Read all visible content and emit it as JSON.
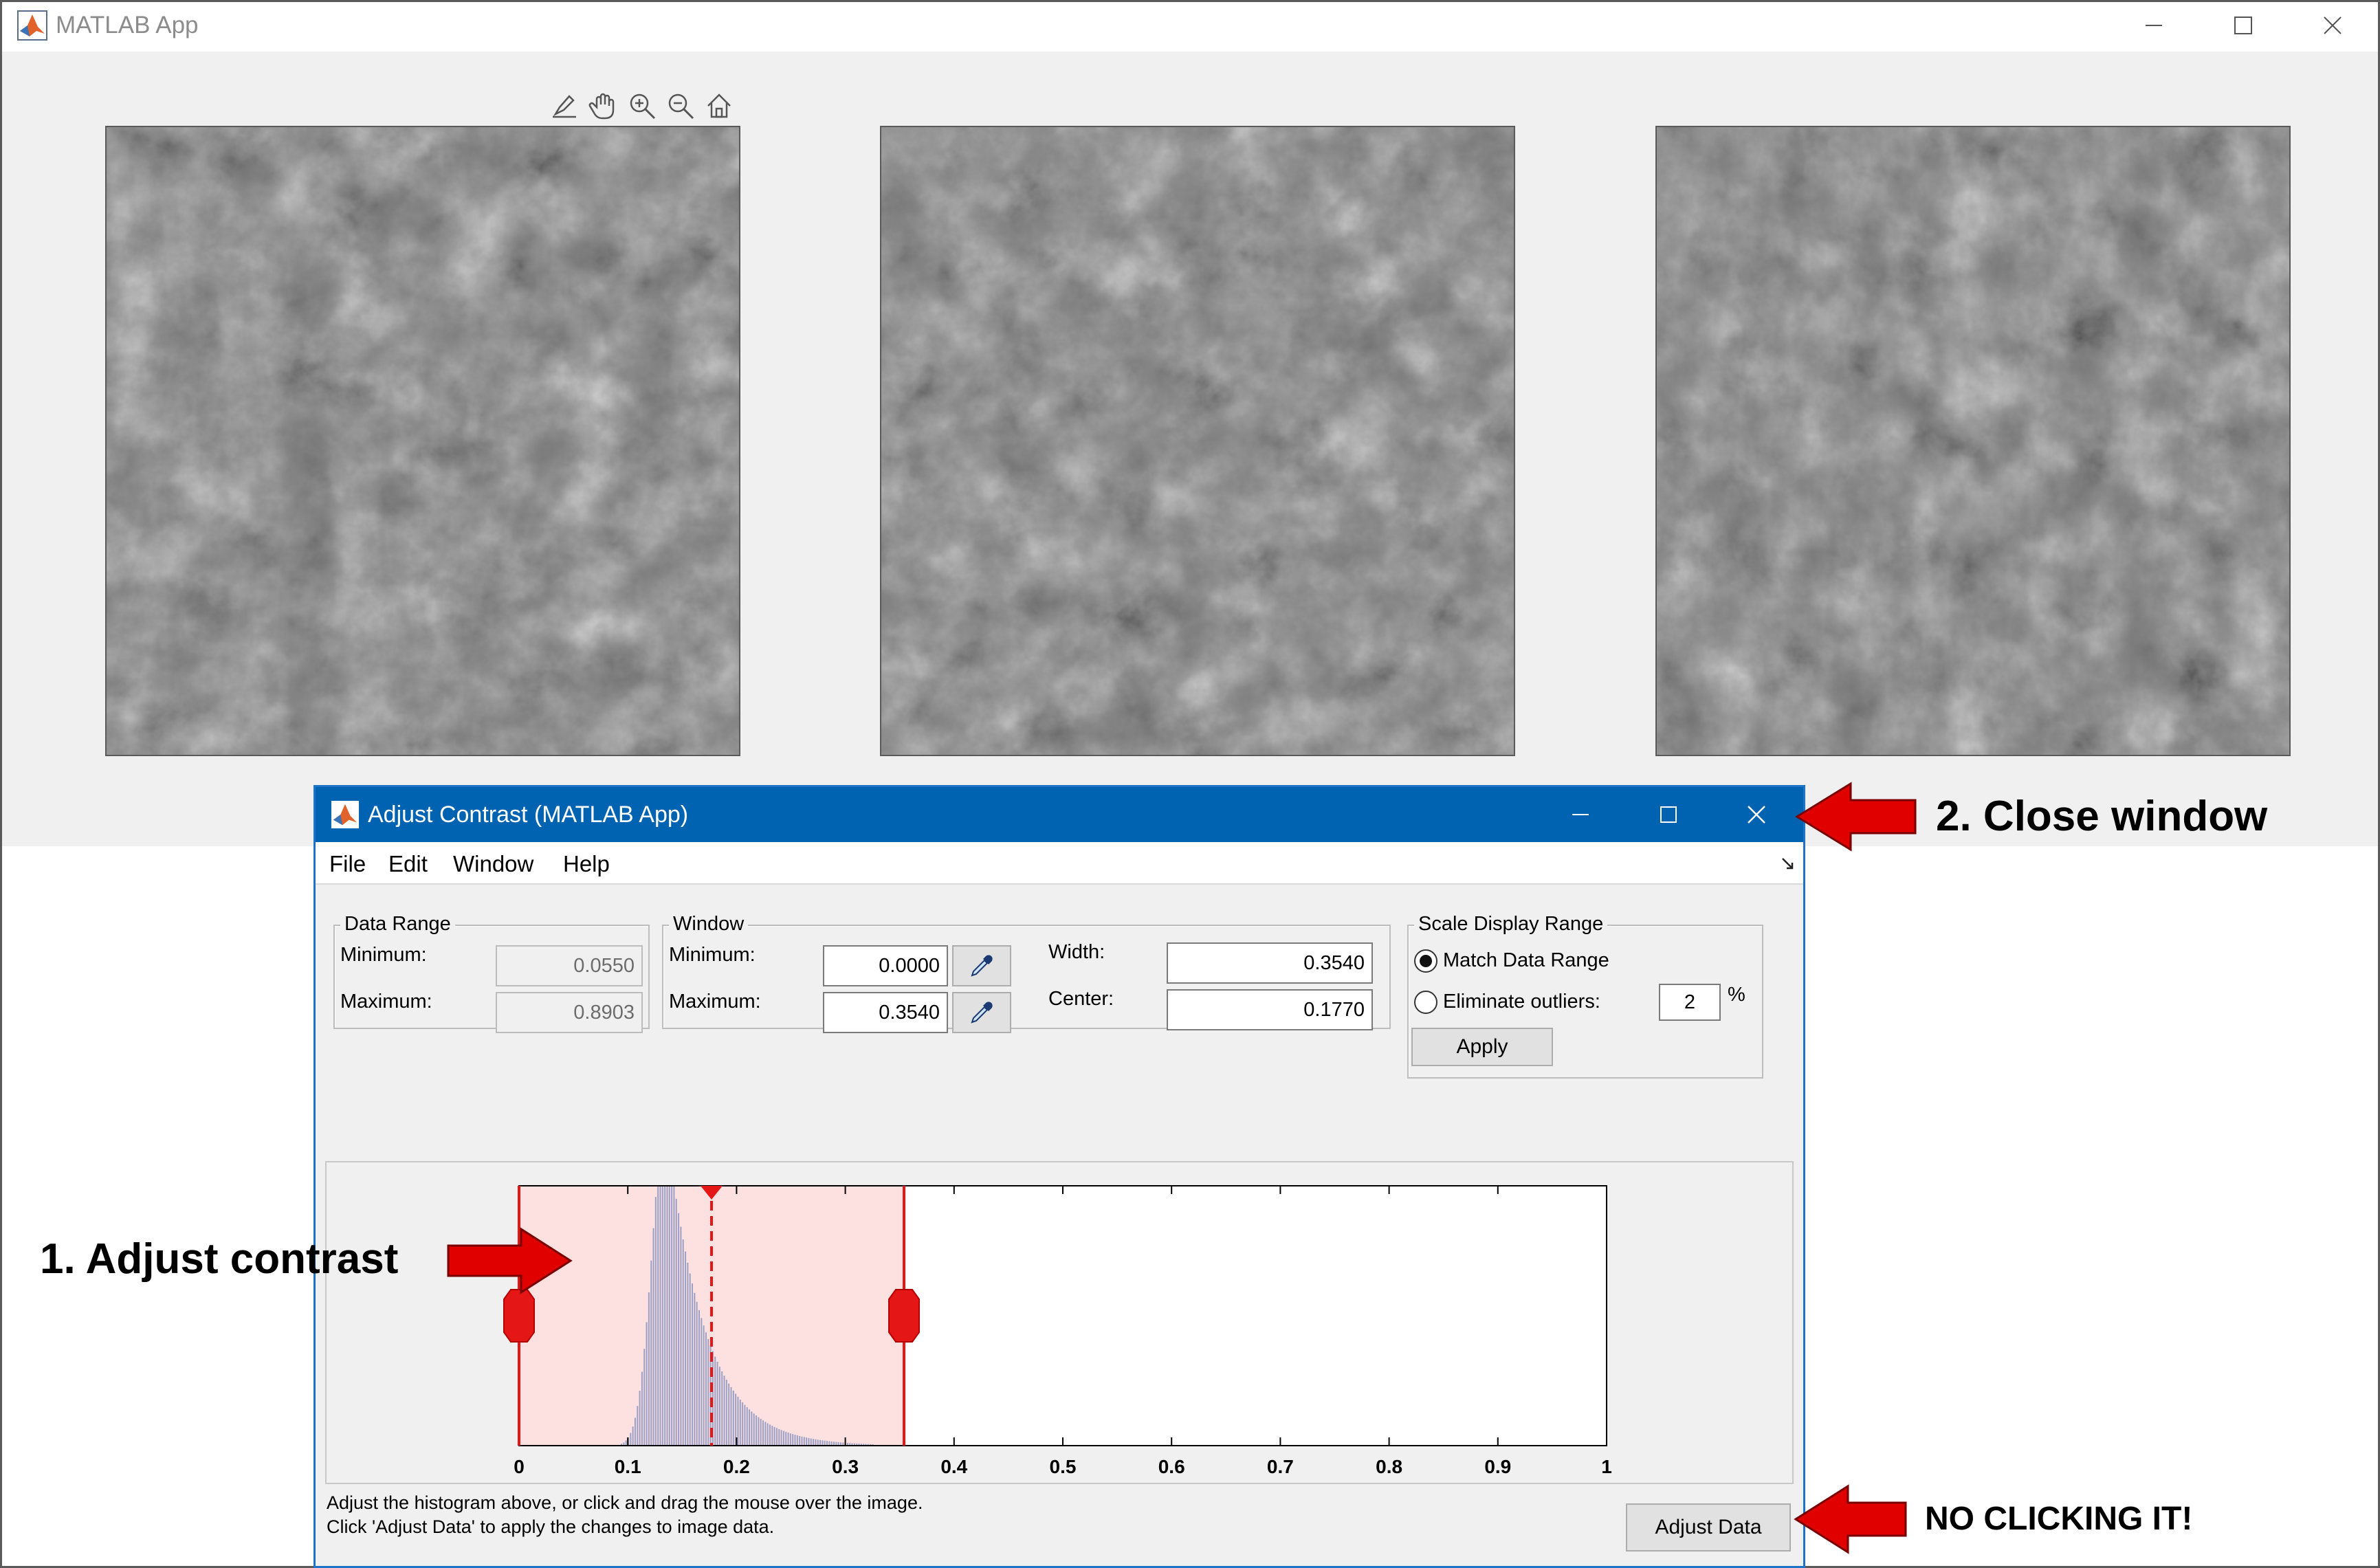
{
  "main_window": {
    "title": "MATLAB App",
    "icon": "matlab-logo-icon",
    "controls": [
      "minimize-icon",
      "maximize-icon",
      "close-icon"
    ]
  },
  "axes_toolbar": {
    "tools": [
      "brush-icon",
      "pan-hand-icon",
      "zoom-in-icon",
      "zoom-out-icon",
      "restore-view-home-icon"
    ]
  },
  "image_panels": [
    {
      "icon": "grayscale-texture-image"
    },
    {
      "icon": "grayscale-texture-image"
    },
    {
      "icon": "grayscale-texture-image"
    }
  ],
  "dialog": {
    "title": "Adjust Contrast (MATLAB App)",
    "icon": "matlab-logo-icon",
    "menu": [
      "File",
      "Edit",
      "Window",
      "Help"
    ],
    "data_range": {
      "title": "Data Range",
      "min_label": "Minimum:",
      "min_value": "0.0550",
      "max_label": "Maximum:",
      "max_value": "0.8903"
    },
    "window": {
      "title": "Window",
      "min_label": "Minimum:",
      "min_value": "0.0000",
      "max_label": "Maximum:",
      "max_value": "0.3540",
      "width_label": "Width:",
      "width_value": "0.3540",
      "center_label": "Center:",
      "center_value": "0.1770",
      "eyedropper_icon": "eyedropper-icon"
    },
    "scale": {
      "title": "Scale Display Range",
      "option_match": "Match Data Range",
      "option_eliminate": "Eliminate outliers:",
      "outlier_percent": "2",
      "percent_sign": "%",
      "selected_option": "match",
      "apply_label": "Apply"
    },
    "instructions_line1": "Adjust the histogram above, or click and drag the mouse over the image.",
    "instructions_line2": "Click 'Adjust Data' to apply the changes to image data.",
    "adjust_data_label": "Adjust Data"
  },
  "chart_data": {
    "type": "bar",
    "x_ticks": [
      0,
      0.1,
      0.2,
      0.3,
      0.4,
      0.5,
      0.6,
      0.7,
      0.8,
      0.9,
      1
    ],
    "xlim": [
      0,
      1
    ],
    "window_min": 0.0,
    "window_max": 0.354,
    "window_center": 0.177,
    "highlight_color": "#fde0e0",
    "line_color": "#e51616",
    "bar_color": "#9aa0c6"
  },
  "annotations": {
    "close": "2. Close window",
    "contrast": "1. Adjust contrast",
    "no_click": "NO CLICKING IT!",
    "arrow_color": "#e00000"
  }
}
